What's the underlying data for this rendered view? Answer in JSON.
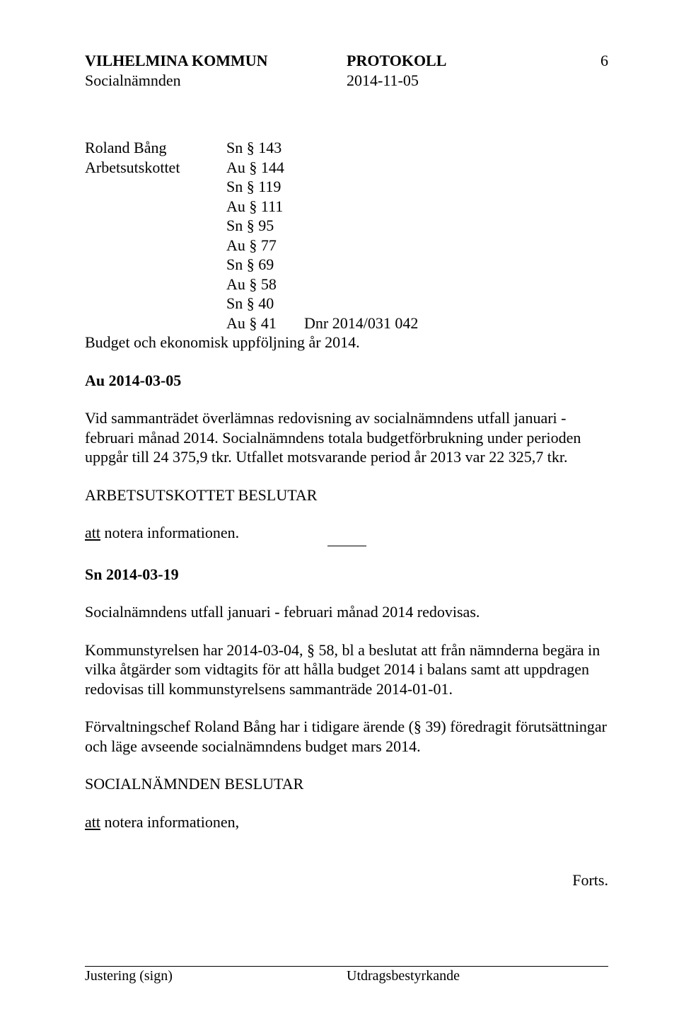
{
  "typography": {
    "font_family": "Times New Roman",
    "base_fontsize_pt": 17,
    "line_height": 1.25,
    "text_color": "#000000",
    "background_color": "#ffffff"
  },
  "header": {
    "org": "VILHELMINA KOMMUN",
    "doc_type": "PROTOKOLL",
    "page_number": "6",
    "board": "Socialnämnden",
    "date": "2014-11-05"
  },
  "distribution": {
    "rows": [
      {
        "name": "Roland Bång",
        "ref": "Sn § 143"
      },
      {
        "name": "Arbetsutskottet",
        "ref": "Au § 144"
      },
      {
        "name": "",
        "ref": "Sn § 119"
      },
      {
        "name": "",
        "ref": "Au § 111"
      },
      {
        "name": "",
        "ref": "Sn § 95"
      },
      {
        "name": "",
        "ref": "Au § 77"
      },
      {
        "name": "",
        "ref": "Sn § 69"
      },
      {
        "name": "",
        "ref": "Au § 58"
      },
      {
        "name": "",
        "ref": "Sn § 40"
      }
    ],
    "dnr_row": {
      "ref": "Au § 41",
      "dnr": "Dnr 2014/031    042"
    }
  },
  "title": "Budget och ekonomisk uppföljning år 2014.",
  "blocks": [
    {
      "kind": "heading",
      "bold": true,
      "text": "Au 2014-03-05"
    },
    {
      "kind": "para",
      "text": "Vid sammanträdet överlämnas redovisning av socialnämndens utfall januari - februari månad 2014. Socialnämndens totala budgetförbrukning under perioden uppgår till 24 375,9 tkr. Utfallet motsvarande period år 2013 var 22 325,7 tkr."
    },
    {
      "kind": "para",
      "text": "ARBETSUTSKOTTET BESLUTAR"
    },
    {
      "kind": "decision",
      "underlined": "att",
      "rest": " notera informationen."
    },
    {
      "kind": "rule"
    },
    {
      "kind": "heading",
      "bold": true,
      "text": "Sn 2014-03-19"
    },
    {
      "kind": "para",
      "text": "Socialnämndens utfall januari - februari månad 2014 redovisas."
    },
    {
      "kind": "para",
      "text": "Kommunstyrelsen har 2014-03-04, § 58, bl a beslutat att från nämnderna begära in vilka åtgärder som vidtagits för att hålla budget 2014 i balans samt att uppdragen redovisas till kommunstyrelsens sammanträde 2014-01-01."
    },
    {
      "kind": "para",
      "text": "Förvaltningschef Roland Bång har i tidigare ärende (§ 39) föredragit förutsättningar och läge avseende socialnämndens budget mars 2014."
    },
    {
      "kind": "para",
      "text": "SOCIALNÄMNDEN BESLUTAR"
    },
    {
      "kind": "decision",
      "underlined": "att",
      "rest": " notera informationen,"
    }
  ],
  "forts": "Forts.",
  "footer": {
    "left": "Justering (sign)",
    "right": "Utdragsbestyrkande"
  }
}
